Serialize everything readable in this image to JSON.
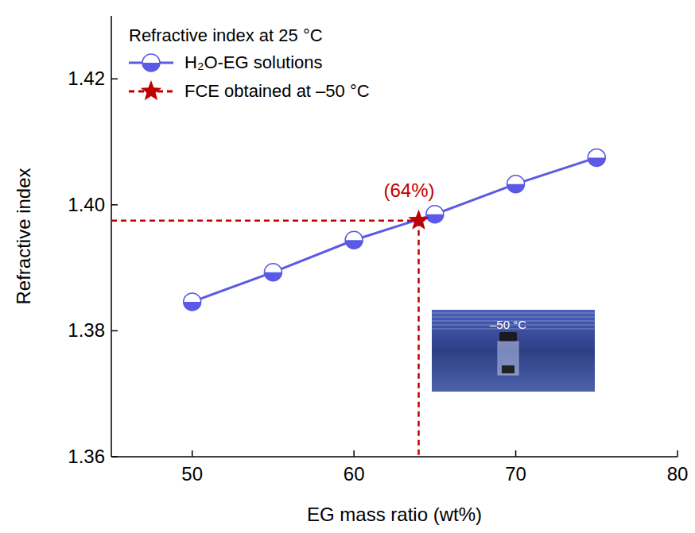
{
  "chart_data": {
    "type": "line",
    "legend_title": "Refractive index at 25 °C",
    "x_label": "EG mass ratio (wt%)",
    "y_label": "Refractive index",
    "xlim": [
      45,
      80
    ],
    "xticks": [
      50,
      60,
      70,
      80
    ],
    "ylim": [
      1.36,
      1.43
    ],
    "yticks": [
      1.36,
      1.38,
      {
        "value": 1.4,
        "label": "1.40"
      },
      1.42
    ],
    "legend": "upper left",
    "series": [
      {
        "name": "H₂O-EG solutions",
        "type": "line",
        "marker": "half-circle",
        "line_style": "solid",
        "color": "#5a5ae6",
        "x": [
          50,
          55,
          60,
          65,
          70,
          75
        ],
        "values": [
          1.3846,
          1.3893,
          1.3944,
          1.3985,
          1.4033,
          1.4075
        ]
      },
      {
        "name": "FCE obtained at –50 °C",
        "type": "scatter",
        "marker": "star",
        "line_style": "dashed",
        "color": "#c00000",
        "x": [
          64
        ],
        "values": [
          1.3975
        ]
      }
    ],
    "annotations": [
      {
        "text": "(64%)",
        "x": 64,
        "y": 1.3975
      }
    ],
    "inset_text": "–50 °C"
  }
}
